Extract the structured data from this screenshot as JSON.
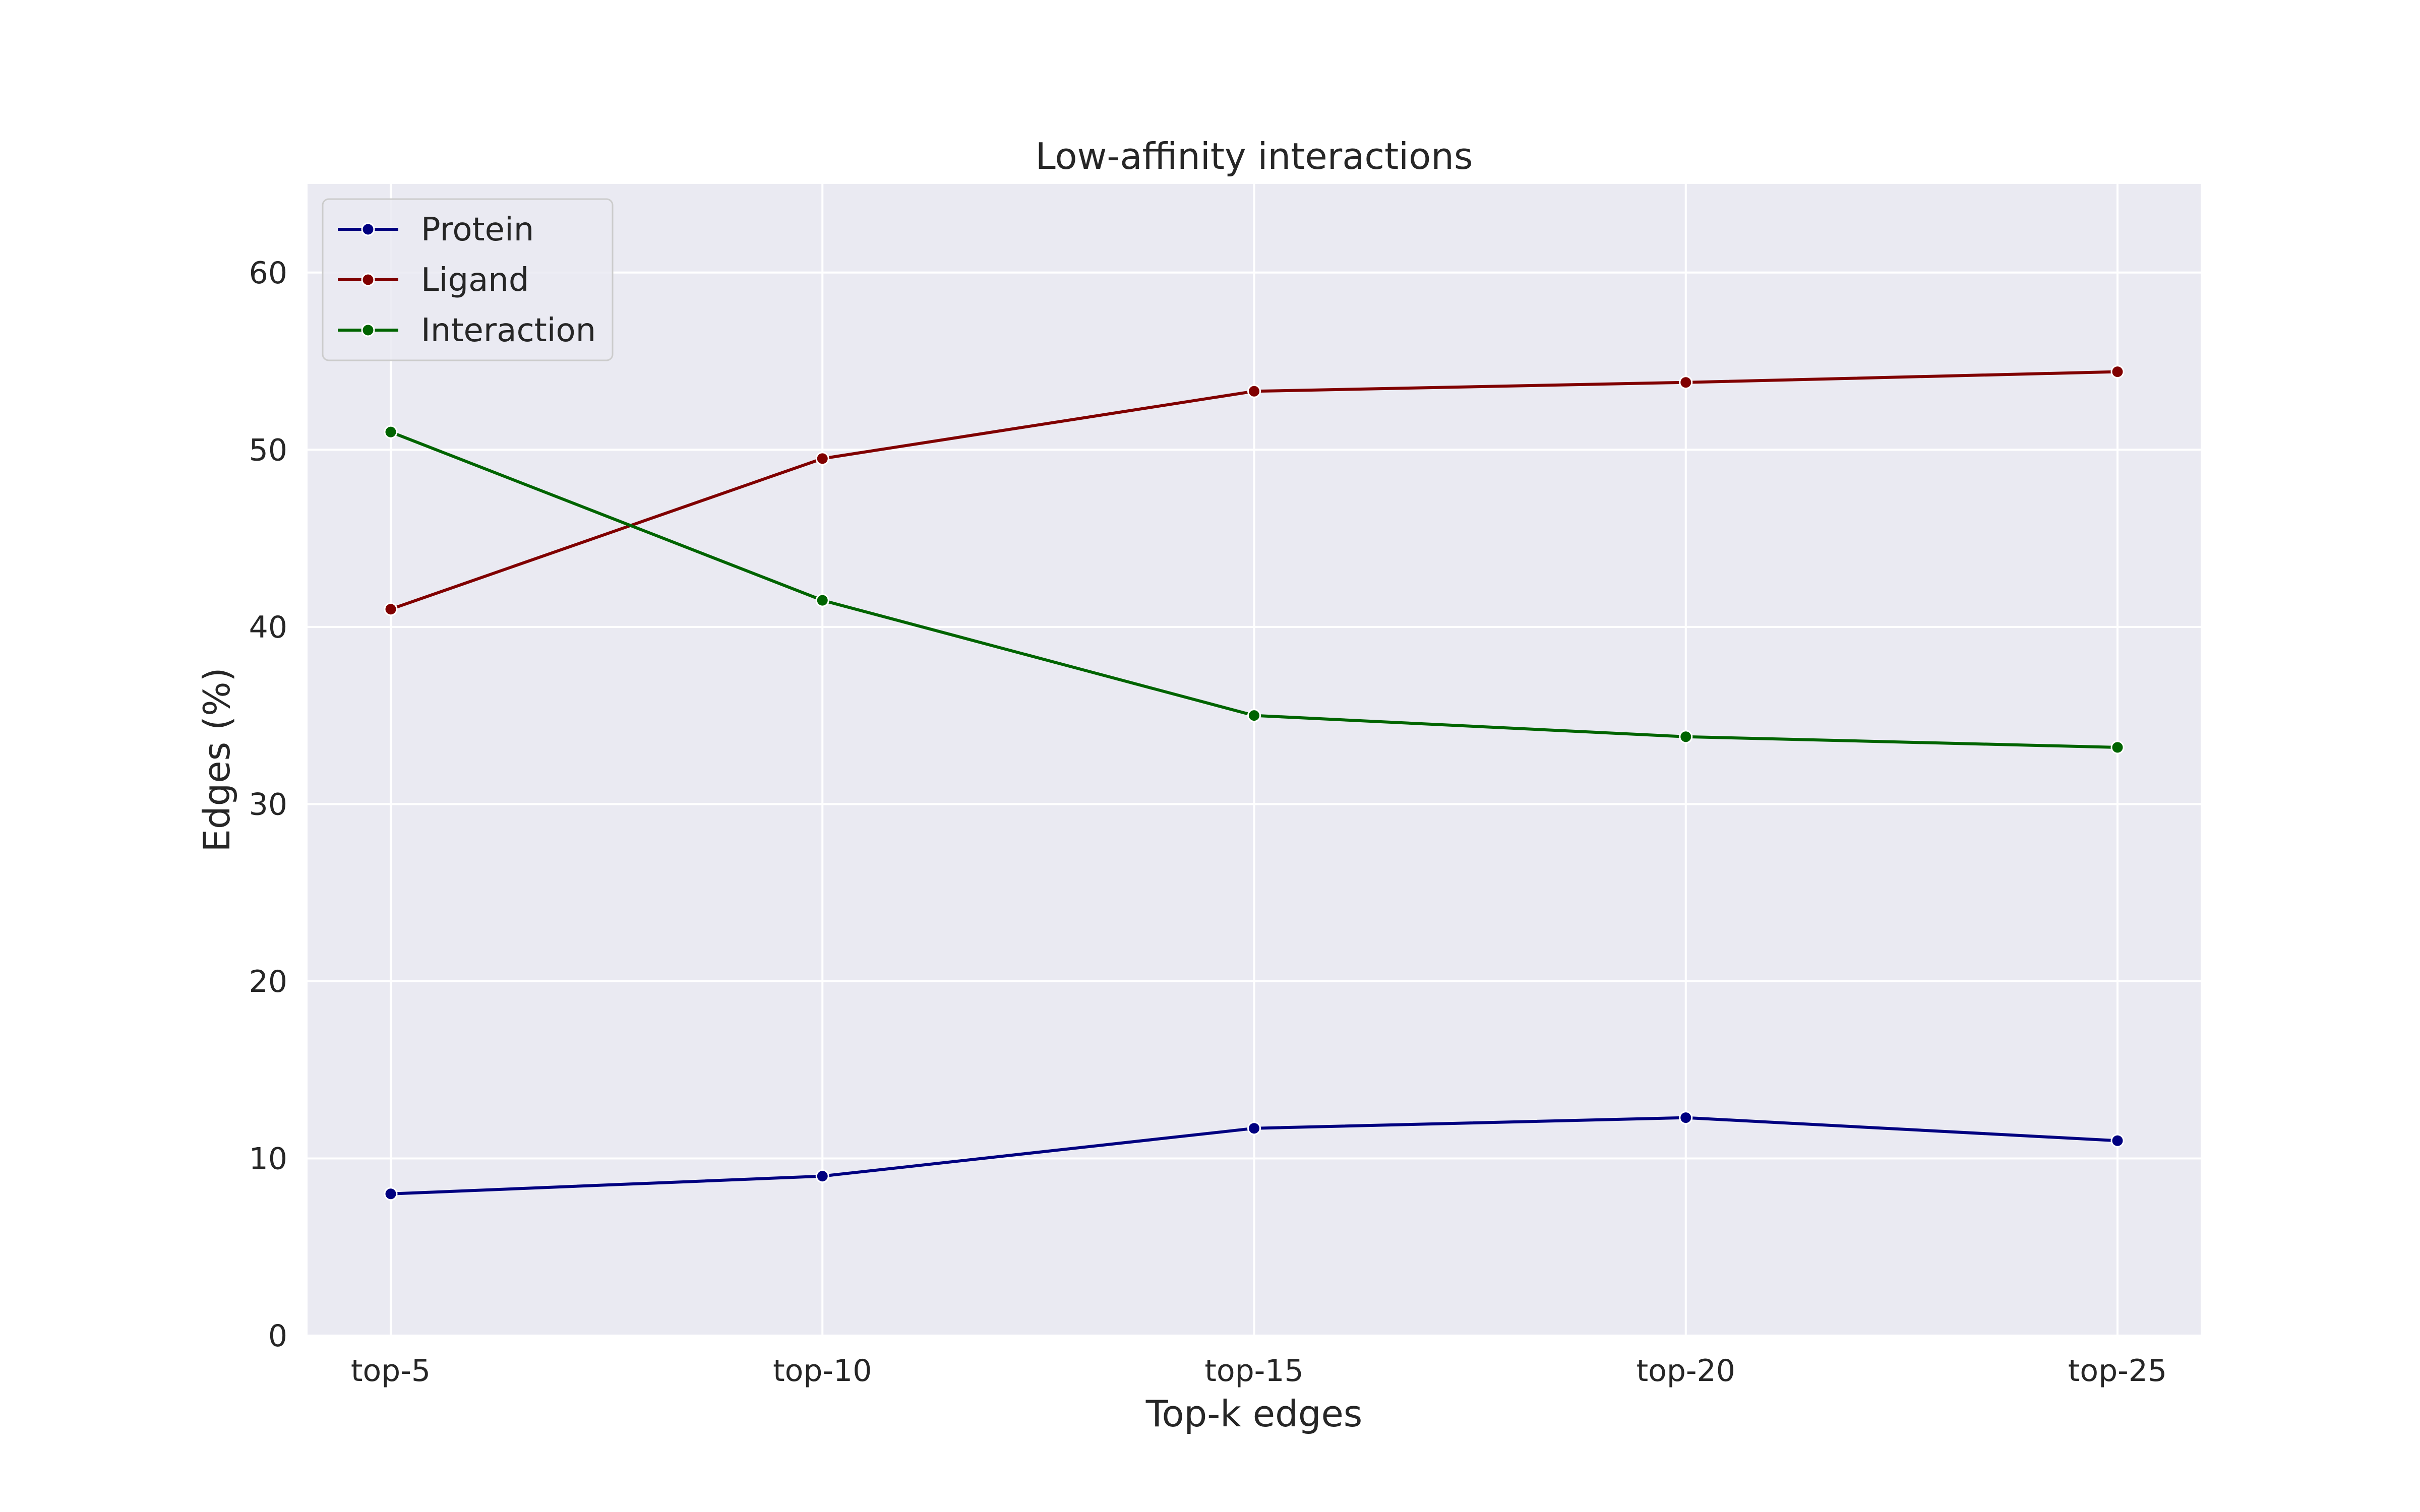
{
  "chart_data": {
    "type": "line",
    "title": "Low-affinity interactions",
    "xlabel": "Top-k edges",
    "ylabel": "Edges (%)",
    "categories": [
      "top-5",
      "top-10",
      "top-15",
      "top-20",
      "top-25"
    ],
    "ylim": [
      0,
      65
    ],
    "yticks": [
      0,
      10,
      20,
      30,
      40,
      50,
      60
    ],
    "grid": true,
    "legend_position": "top-left",
    "background": "#eaeaf2",
    "series": [
      {
        "name": "Protein",
        "color": "#000080",
        "values": [
          8.0,
          9.0,
          11.7,
          12.3,
          11.0
        ]
      },
      {
        "name": "Ligand",
        "color": "#800000",
        "values": [
          41.0,
          49.5,
          53.3,
          53.8,
          54.4
        ]
      },
      {
        "name": "Interaction",
        "color": "#006400",
        "values": [
          51.0,
          41.5,
          35.0,
          33.8,
          33.2
        ]
      }
    ]
  }
}
